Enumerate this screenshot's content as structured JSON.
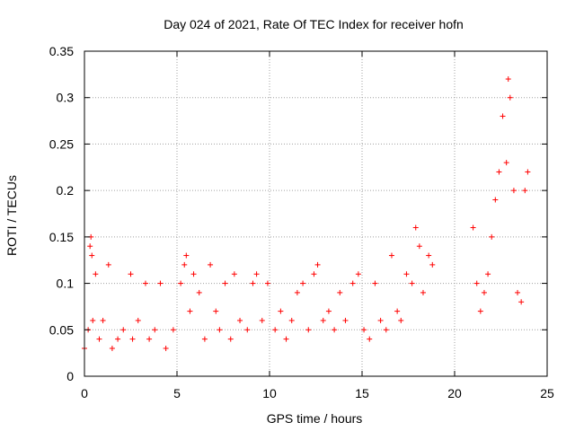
{
  "chart_data": {
    "type": "scatter",
    "title": "Day 024 of 2021, Rate Of TEC Index for receiver hofn",
    "xlabel": "GPS time / hours",
    "ylabel": "ROTI / TECUs",
    "xlim": [
      0,
      25
    ],
    "ylim": [
      0,
      0.35
    ],
    "x_ticks": [
      "0",
      "5",
      "10",
      "15",
      "20",
      "25"
    ],
    "y_ticks": [
      "0",
      "0.05",
      "0.1",
      "0.15",
      "0.2",
      "0.25",
      "0.3",
      "0.35"
    ],
    "grid": true,
    "marker": "+",
    "color": "#ff0000",
    "series": [
      {
        "x": [
          0.0,
          0.2,
          0.3,
          0.35,
          0.4,
          0.45,
          0.6,
          0.8,
          1.0,
          1.3,
          1.5,
          1.8,
          2.1,
          2.5,
          2.6,
          2.9,
          3.3,
          3.5,
          3.8,
          4.1,
          4.4,
          4.8,
          5.2,
          5.4,
          5.5,
          5.7,
          5.9,
          6.2,
          6.5,
          6.8,
          7.1,
          7.3,
          7.6,
          7.9,
          8.1,
          8.4,
          8.8,
          9.1,
          9.3,
          9.6,
          9.9,
          10.3,
          10.6,
          10.9,
          11.2,
          11.5,
          11.8,
          12.1,
          12.4,
          12.6,
          12.9,
          13.2,
          13.5,
          13.8,
          14.1,
          14.5,
          14.8,
          15.1,
          15.4,
          15.7,
          16.0,
          16.3,
          16.6,
          16.9,
          17.1,
          17.4,
          17.7,
          17.9,
          18.1,
          18.3,
          18.6,
          18.8,
          21.0,
          21.2,
          21.4,
          21.6,
          21.8,
          22.0,
          22.2,
          22.4,
          22.6,
          22.8,
          22.9,
          23.0,
          23.2,
          23.4,
          23.6,
          23.8,
          23.95
        ],
        "y": [
          0.03,
          0.05,
          0.14,
          0.15,
          0.13,
          0.06,
          0.11,
          0.04,
          0.06,
          0.12,
          0.03,
          0.04,
          0.05,
          0.11,
          0.04,
          0.06,
          0.1,
          0.04,
          0.05,
          0.1,
          0.03,
          0.05,
          0.1,
          0.12,
          0.13,
          0.07,
          0.11,
          0.09,
          0.04,
          0.12,
          0.07,
          0.05,
          0.1,
          0.04,
          0.11,
          0.06,
          0.05,
          0.1,
          0.11,
          0.06,
          0.1,
          0.05,
          0.07,
          0.04,
          0.06,
          0.09,
          0.1,
          0.05,
          0.11,
          0.12,
          0.06,
          0.07,
          0.05,
          0.09,
          0.06,
          0.1,
          0.11,
          0.05,
          0.04,
          0.1,
          0.06,
          0.05,
          0.13,
          0.07,
          0.06,
          0.11,
          0.1,
          0.16,
          0.14,
          0.09,
          0.13,
          0.12,
          0.16,
          0.1,
          0.07,
          0.09,
          0.11,
          0.15,
          0.19,
          0.22,
          0.28,
          0.23,
          0.32,
          0.3,
          0.2,
          0.09,
          0.08,
          0.2,
          0.22
        ]
      }
    ]
  }
}
